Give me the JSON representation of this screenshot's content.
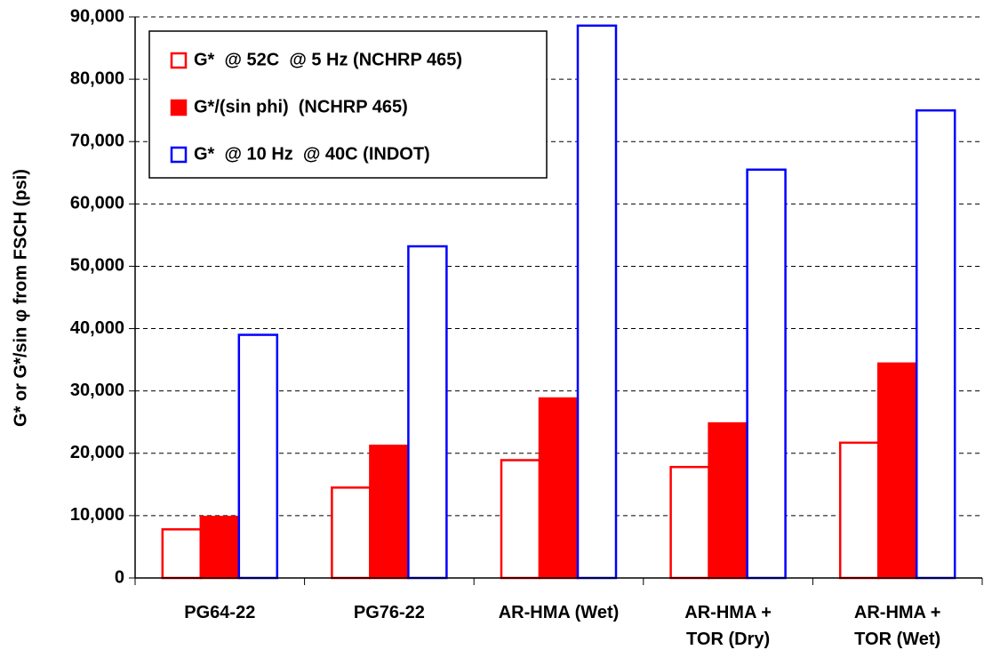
{
  "chart_data": {
    "type": "bar",
    "y_label": "G* or G*/sin φ from FSCH (psi)",
    "categories": [
      "PG64-22",
      "PG76-22",
      "AR-HMA (Wet)",
      "AR-HMA +\nTOR (Dry)",
      "AR-HMA +\nTOR (Wet)"
    ],
    "series": [
      {
        "name": "G*  @ 52C  @ 5 Hz (NCHRP 465)",
        "color": "#ff0000",
        "fill": "#ffffff",
        "values": [
          7800,
          14500,
          18900,
          17800,
          21700
        ]
      },
      {
        "name": "G*/(sin phi)  (NCHRP 465)",
        "color": "#ff0000",
        "fill": "#ff0000",
        "values": [
          9800,
          21200,
          28800,
          24800,
          34400
        ]
      },
      {
        "name": "G*  @ 10 Hz  @ 40C (INDOT)",
        "color": "#0000ff",
        "fill": "#ffffff",
        "values": [
          39000,
          53200,
          88600,
          65500,
          75000
        ]
      }
    ],
    "ylim": [
      0,
      90000
    ],
    "yticks": [
      0,
      {
        "value": 10000,
        "label": "10,000"
      },
      {
        "value": 20000,
        "label": "20,000"
      },
      {
        "value": 30000,
        "label": "30,000"
      },
      {
        "value": 40000,
        "label": "40,000"
      },
      {
        "value": 50000,
        "label": "50,000"
      },
      {
        "value": 60000,
        "label": "60,000"
      },
      {
        "value": 70000,
        "label": "70,000"
      },
      {
        "value": 80000,
        "label": "80,000"
      },
      {
        "value": 90000,
        "label": "90,000"
      }
    ],
    "grid": true,
    "legend": "upper left"
  }
}
